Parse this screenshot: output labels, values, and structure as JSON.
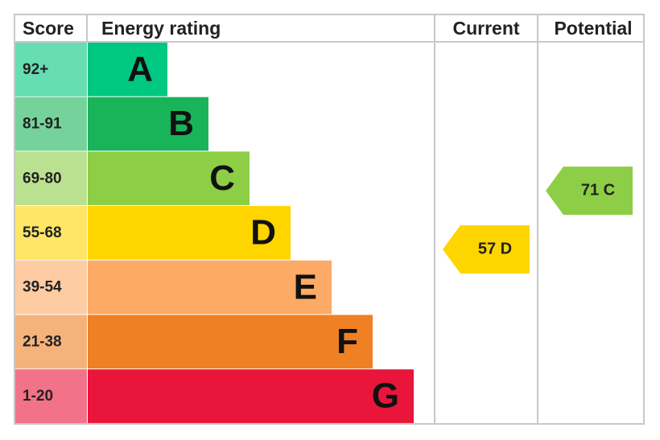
{
  "chart_data": {
    "type": "epc",
    "headers": [
      "Score",
      "Energy rating",
      "Current",
      "Potential"
    ],
    "bands": [
      {
        "score": "92+",
        "letter": "A",
        "color": "#00c781"
      },
      {
        "score": "81-91",
        "letter": "B",
        "color": "#19b459"
      },
      {
        "score": "69-80",
        "letter": "C",
        "color": "#8dce46"
      },
      {
        "score": "55-68",
        "letter": "D",
        "color": "#ffd500"
      },
      {
        "score": "39-54",
        "letter": "E",
        "color": "#fcaa65"
      },
      {
        "score": "21-38",
        "letter": "F",
        "color": "#ef8023"
      },
      {
        "score": "1-20",
        "letter": "G",
        "color": "#e9153b"
      }
    ],
    "current": {
      "value": 57,
      "value_label": "57 D",
      "color": "#ffd500"
    },
    "potential": {
      "value": 71,
      "value_label": "71 C",
      "color": "#8dce46"
    }
  }
}
